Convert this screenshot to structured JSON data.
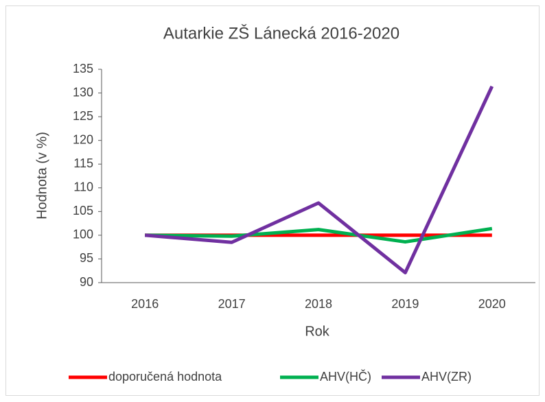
{
  "chart_data": {
    "type": "line",
    "title": "Autarkie ZŠ Lánecká 2016-2020",
    "x_label": "Rok",
    "y_label": "Hodnota (v %)",
    "categories": [
      "2016",
      "2017",
      "2018",
      "2019",
      "2020"
    ],
    "series": [
      {
        "name": "doporučená hodnota",
        "color": "#ff0000",
        "values": [
          100,
          100,
          100,
          100,
          100
        ]
      },
      {
        "name": "AHV(HČ)",
        "color": "#00b050",
        "values": [
          100,
          99.8,
          101.2,
          98.6,
          101.4
        ]
      },
      {
        "name": "AHV(ZR)",
        "color": "#7030a0",
        "values": [
          100,
          98.5,
          106.8,
          92.1,
          131.4
        ]
      }
    ],
    "ylim": [
      90,
      135
    ],
    "yticks": [
      90,
      95,
      100,
      105,
      110,
      115,
      120,
      125,
      130,
      135
    ],
    "grid": false,
    "legend": "bottom"
  }
}
